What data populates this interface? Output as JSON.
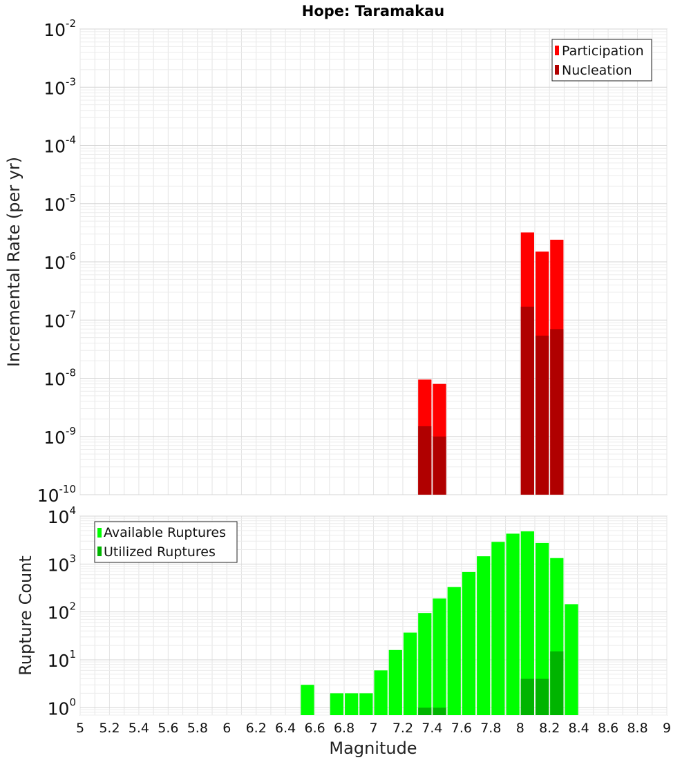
{
  "title": "Hope: Taramakau",
  "chart_data": [
    {
      "type": "bar",
      "title": "Hope: Taramakau",
      "ylabel": "Incremental Rate (per yr)",
      "yscale": "log",
      "ylim": [
        1e-10,
        0.01
      ],
      "xlim": [
        5,
        9
      ],
      "legend_position": "top-right",
      "grid": true,
      "series": [
        {
          "name": "Participation",
          "color": "#ff0000",
          "x": [
            7.35,
            7.45,
            8.05,
            8.15,
            8.25
          ],
          "values": [
            9.5e-09,
            8e-09,
            3.2e-06,
            1.5e-06,
            2.4e-06
          ]
        },
        {
          "name": "Nucleation",
          "color": "#b00000",
          "x": [
            7.35,
            7.45,
            8.05,
            8.15,
            8.25
          ],
          "values": [
            1.5e-09,
            1e-09,
            1.7e-07,
            5.4e-08,
            7e-08
          ]
        }
      ]
    },
    {
      "type": "bar",
      "xlabel": "Magnitude",
      "ylabel": "Rupture Count",
      "yscale": "log",
      "ylim": [
        0.7,
        10000
      ],
      "xlim": [
        5,
        9
      ],
      "legend_position": "top-left",
      "grid": true,
      "series": [
        {
          "name": "Available Ruptures",
          "color": "#00ff00",
          "x": [
            6.55,
            6.75,
            6.85,
            6.95,
            7.05,
            7.15,
            7.25,
            7.35,
            7.45,
            7.55,
            7.65,
            7.75,
            7.85,
            7.95,
            8.05,
            8.15,
            8.25,
            8.35
          ],
          "values": [
            3,
            2,
            2,
            2,
            6,
            16,
            37,
            95,
            190,
            330,
            680,
            1450,
            2900,
            4300,
            4800,
            2750,
            1330,
            145
          ]
        },
        {
          "name": "Utilized Ruptures",
          "color": "#00b400",
          "x": [
            7.35,
            7.45,
            8.05,
            8.15,
            8.25
          ],
          "values": [
            1,
            1,
            4,
            4,
            15
          ]
        }
      ]
    }
  ],
  "x_ticks": [
    "5",
    "5.2",
    "5.4",
    "5.6",
    "5.8",
    "6",
    "6.2",
    "6.4",
    "6.6",
    "6.8",
    "7",
    "7.2",
    "7.4",
    "7.6",
    "7.8",
    "8",
    "8.2",
    "8.4",
    "8.6",
    "8.8",
    "9"
  ],
  "top_y_ticks": [
    {
      "base": "10",
      "exp": "-2"
    },
    {
      "base": "10",
      "exp": "-3"
    },
    {
      "base": "10",
      "exp": "-4"
    },
    {
      "base": "10",
      "exp": "-5"
    },
    {
      "base": "10",
      "exp": "-6"
    },
    {
      "base": "10",
      "exp": "-7"
    },
    {
      "base": "10",
      "exp": "-8"
    },
    {
      "base": "10",
      "exp": "-9"
    },
    {
      "base": "10",
      "exp": "-10"
    }
  ],
  "bottom_y_ticks": [
    {
      "base": "10",
      "exp": "4"
    },
    {
      "base": "10",
      "exp": "3"
    },
    {
      "base": "10",
      "exp": "2"
    },
    {
      "base": "10",
      "exp": "1"
    },
    {
      "base": "10",
      "exp": "0"
    }
  ]
}
